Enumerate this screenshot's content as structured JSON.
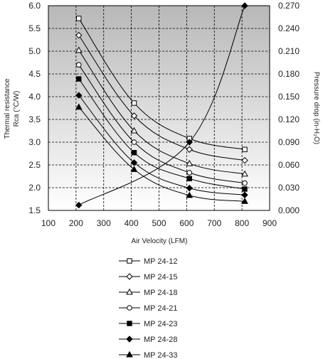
{
  "chart_data": {
    "type": "line",
    "xlabel": "Air Velocity (LFM)",
    "ylabel": [
      "Thermal resistance",
      "Rca (°C/W)"
    ],
    "y2label": "Pressure drop (in-H₂O)",
    "xlim": [
      100,
      900
    ],
    "ylim": [
      1.5,
      6.0
    ],
    "y2lim": [
      0.0,
      0.27
    ],
    "x_ticks": [
      "100",
      "200",
      "300",
      "400",
      "500",
      "600",
      "700",
      "800",
      "900"
    ],
    "y_ticks": [
      "1.5",
      "2.0",
      "2.5",
      "3.0",
      "3.5",
      "4.0",
      "4.5",
      "5.0",
      "5.5",
      "6.0"
    ],
    "y2_ticks": [
      "0.000",
      "0.030",
      "0.060",
      "0.090",
      "0.120",
      "0.150",
      "0.180",
      "0.210",
      "0.240",
      "0.270"
    ],
    "grid": true,
    "legend_position": "bottom",
    "x": [
      210,
      410,
      610,
      810
    ],
    "series": [
      {
        "name": "MP 24-12",
        "marker": "open-square",
        "values": [
          5.72,
          3.86,
          3.08,
          2.84
        ]
      },
      {
        "name": "MP 24-15",
        "marker": "open-diamond",
        "values": [
          5.35,
          3.58,
          2.84,
          2.6
        ]
      },
      {
        "name": "MP 24-18",
        "marker": "open-triangle",
        "values": [
          5.02,
          3.25,
          2.53,
          2.3
        ]
      },
      {
        "name": "MP 24-21",
        "marker": "open-circle",
        "values": [
          4.7,
          3.0,
          2.33,
          2.1
        ]
      },
      {
        "name": "MP 24-23",
        "marker": "filled-square",
        "values": [
          4.39,
          2.77,
          2.2,
          1.97
        ]
      },
      {
        "name": "MP 24-28",
        "marker": "filled-diamond",
        "values": [
          4.03,
          2.55,
          1.99,
          1.84
        ]
      },
      {
        "name": "MP 24-33",
        "marker": "filled-triangle",
        "values": [
          3.77,
          2.4,
          1.83,
          1.7
        ]
      }
    ],
    "pressure_drop": {
      "axis": "right",
      "marker": "filled-diamond",
      "x": [
        210,
        610,
        810
      ],
      "values": [
        0.007,
        0.09,
        0.27
      ]
    }
  }
}
